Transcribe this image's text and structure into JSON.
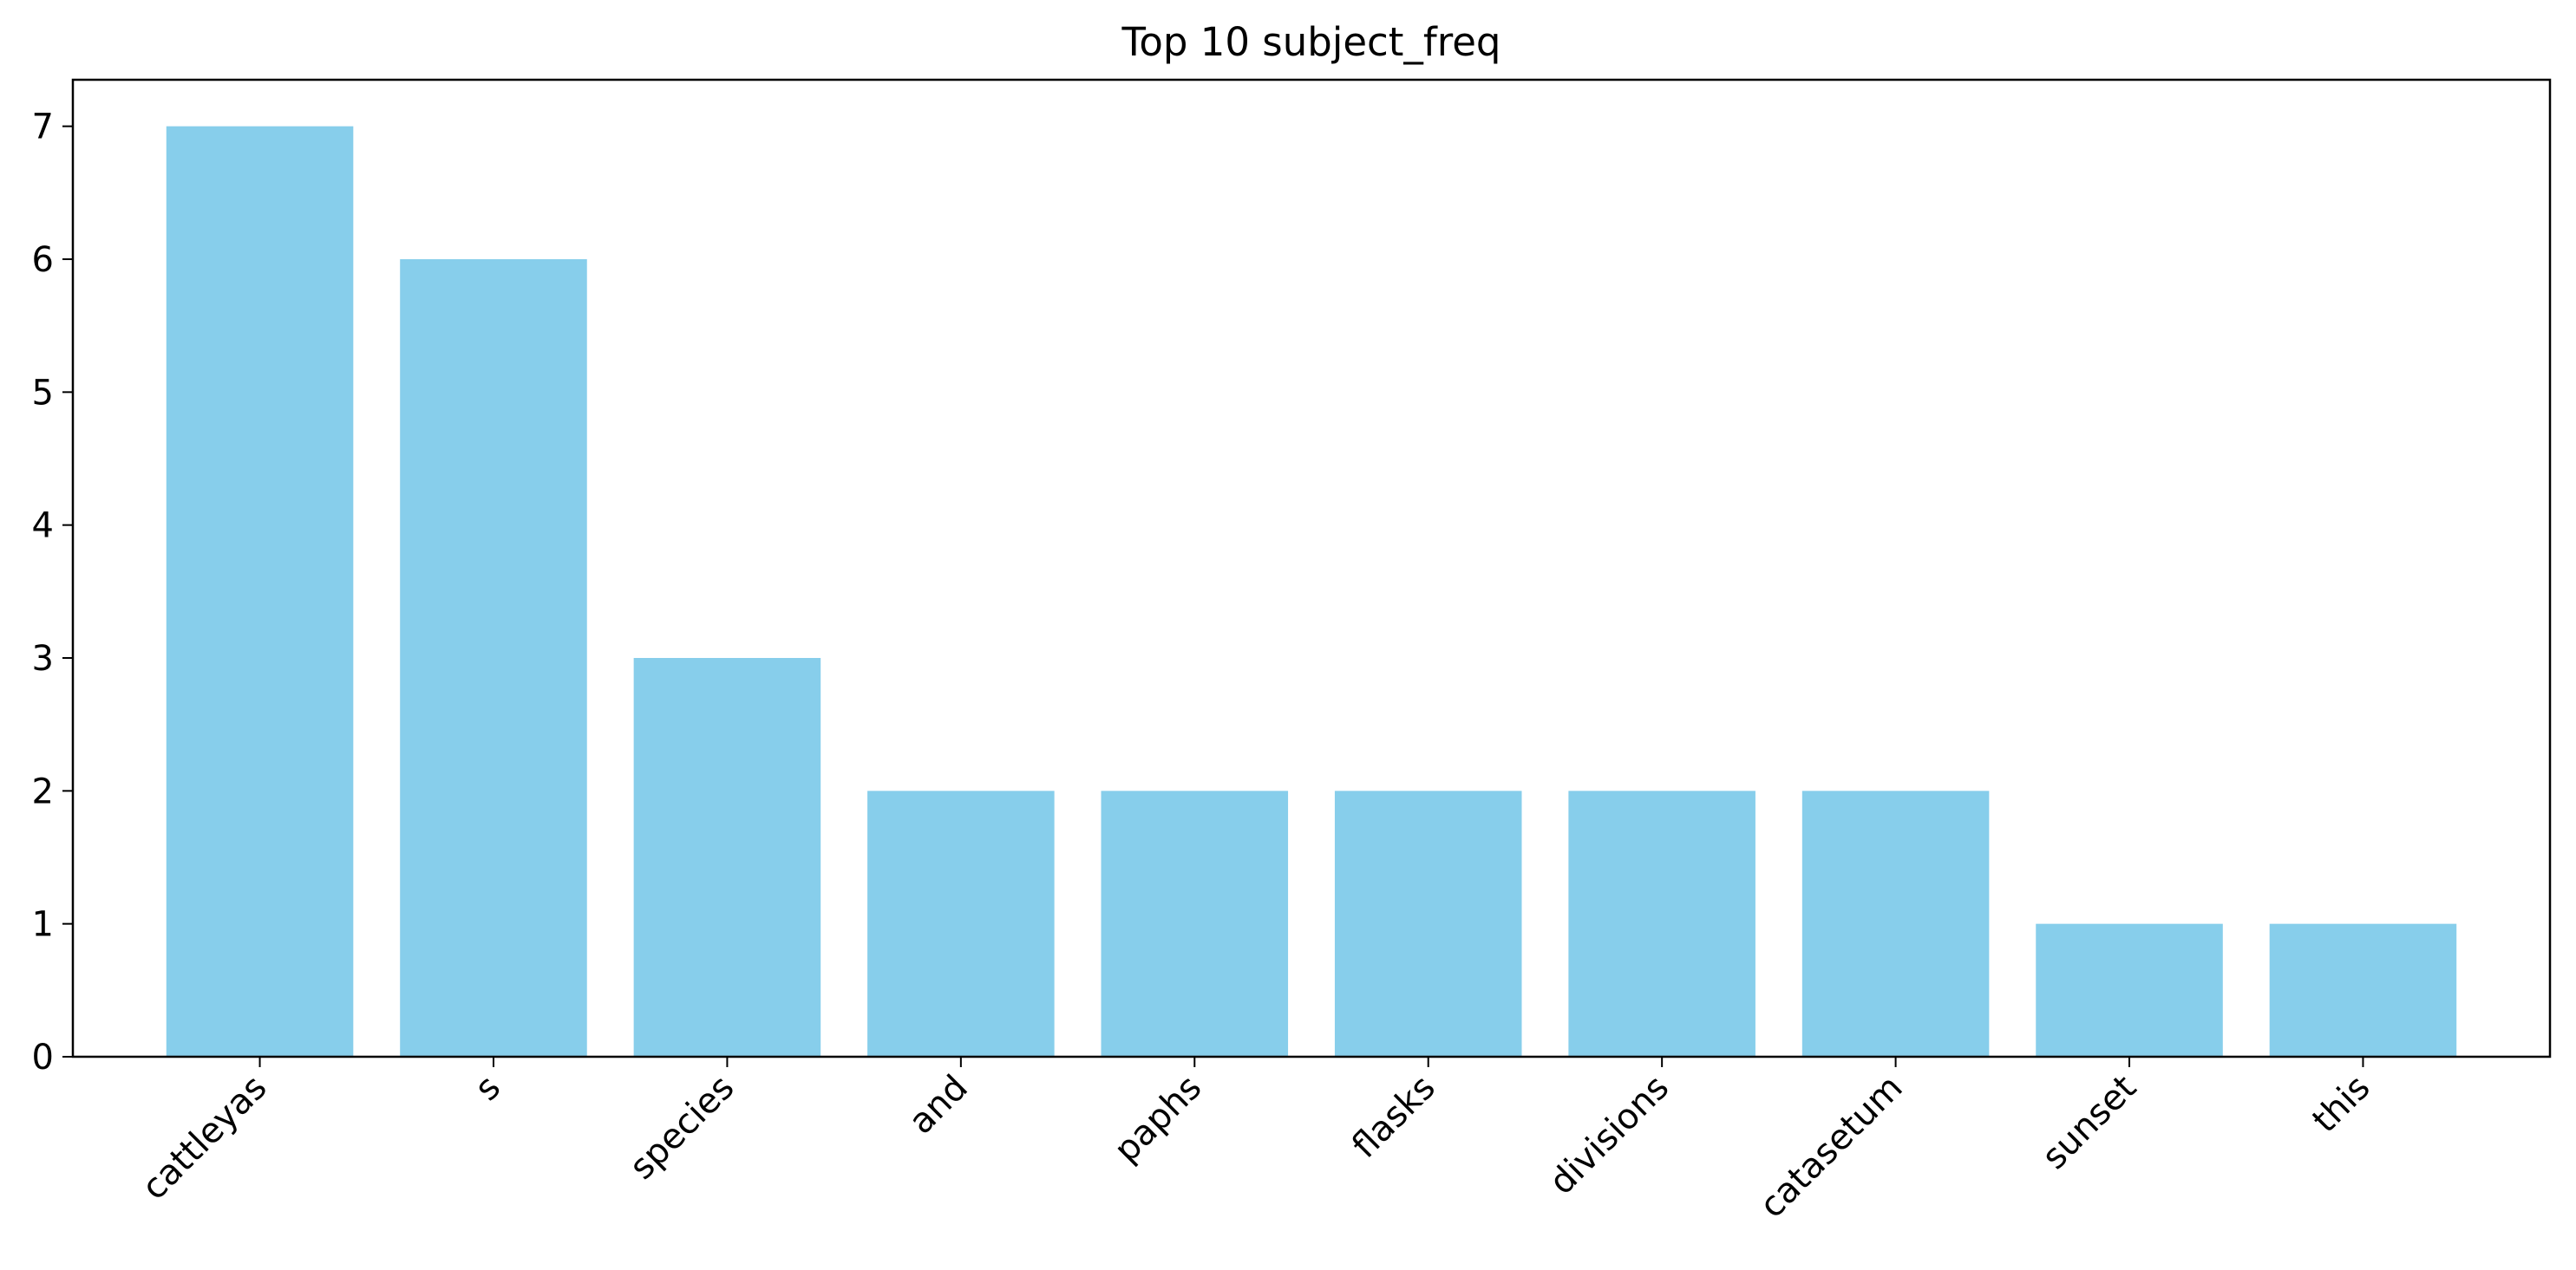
{
  "chart_data": {
    "type": "bar",
    "title": "Top 10 subject_freq",
    "xlabel": "",
    "ylabel": "",
    "categories": [
      "cattleyas",
      "s",
      "species",
      "and",
      "paphs",
      "flasks",
      "divisions",
      "catasetum",
      "sunset",
      "this"
    ],
    "values": [
      7,
      6,
      3,
      2,
      2,
      2,
      2,
      2,
      1,
      1
    ],
    "ylim": [
      0,
      7.35
    ],
    "yticks": [
      0,
      1,
      2,
      3,
      4,
      5,
      6,
      7
    ],
    "grid": false,
    "legend": "none",
    "bar_color": "#87CEEB",
    "x_tick_rotation": 45
  }
}
